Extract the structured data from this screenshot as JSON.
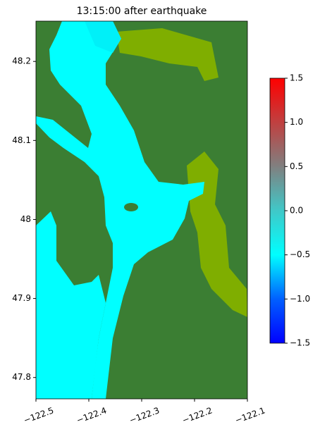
{
  "chart_data": {
    "type": "map",
    "title": "13:15:00 after earthquake",
    "xlim": [
      -122.5,
      -122.1
    ],
    "xticks": [
      {
        "value": -122.5,
        "label": "−122.5"
      },
      {
        "value": -122.4,
        "label": "−122.4"
      },
      {
        "value": -122.3,
        "label": "−122.3"
      },
      {
        "value": -122.2,
        "label": "−122.2"
      },
      {
        "value": -122.1,
        "label": "−122.1"
      }
    ],
    "ylim": [
      47.773,
      48.251
    ],
    "yticks": [
      47.8,
      47.9,
      48.0,
      48.1,
      48.2
    ],
    "colorbar": {
      "clim": [
        -1.5,
        1.5
      ],
      "ticks": [
        {
          "value": -1.5,
          "label": "−1.5"
        },
        {
          "value": -1.0,
          "label": "−1.0"
        },
        {
          "value": -0.5,
          "label": "−0.5"
        },
        {
          "value": 0.0,
          "label": "0.0"
        },
        {
          "value": 0.5,
          "label": "0.5"
        },
        {
          "value": 1.0,
          "label": "1.0"
        },
        {
          "value": 1.5,
          "label": "1.5"
        }
      ],
      "colors": [
        "#0000ff",
        "#0060ff",
        "#00ffff",
        "#40c8c8",
        "#808080",
        "#c04040",
        "#ff0000"
      ]
    }
  }
}
